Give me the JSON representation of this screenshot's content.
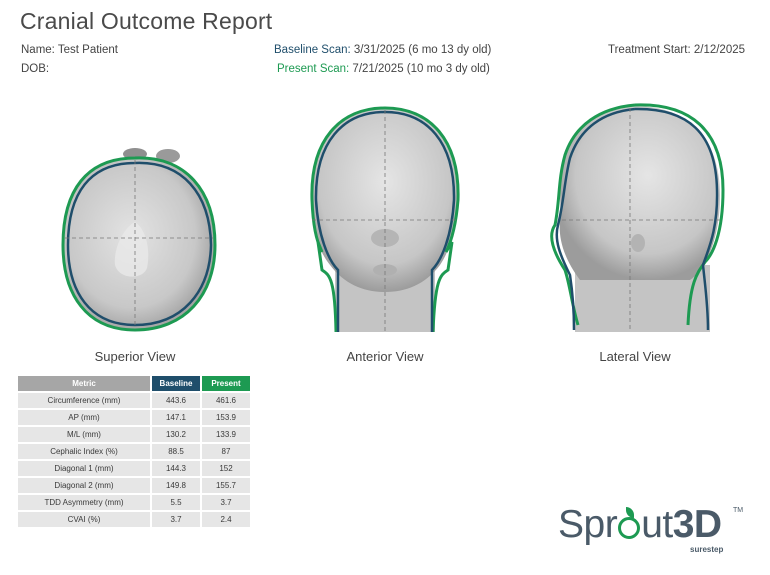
{
  "report": {
    "title": "Cranial Outcome Report",
    "name": "Name: Test Patient",
    "dob": "DOB:",
    "baseline_label": "Baseline Scan:",
    "baseline_value": " 3/31/2025 (6 mo 13 dy old)",
    "present_label": "Present Scan:",
    "present_value": " 7/21/2025 (10 mo 3 dy old)",
    "treatment_start": "Treatment Start: 2/12/2025"
  },
  "views": {
    "superior": "Superior View",
    "anterior": "Anterior View",
    "lateral": "Lateral View"
  },
  "colors": {
    "baseline": "#1f4e6b",
    "present": "#1d9a52",
    "header_gray": "#a6a6a6",
    "row_gray": "#e6e6e6"
  },
  "table": {
    "headers": [
      "Metric",
      "Baseline",
      "Present"
    ],
    "rows": [
      [
        "Circumference (mm)",
        "443.6",
        "461.6"
      ],
      [
        "AP (mm)",
        "147.1",
        "153.9"
      ],
      [
        "M/L (mm)",
        "130.2",
        "133.9"
      ],
      [
        "Cephalic Index (%)",
        "88.5",
        "87"
      ],
      [
        "Diagonal 1 (mm)",
        "144.3",
        "152"
      ],
      [
        "Diagonal 2 (mm)",
        "149.8",
        "155.7"
      ],
      [
        "TDD Asymmetry (mm)",
        "5.5",
        "3.7"
      ],
      [
        "CVAI (%)",
        "3.7",
        "2.4"
      ]
    ]
  },
  "logo": {
    "part1": "Spr",
    "part2": "ut",
    "part3": "3D",
    "tm": "TM",
    "sub": "surestep"
  }
}
